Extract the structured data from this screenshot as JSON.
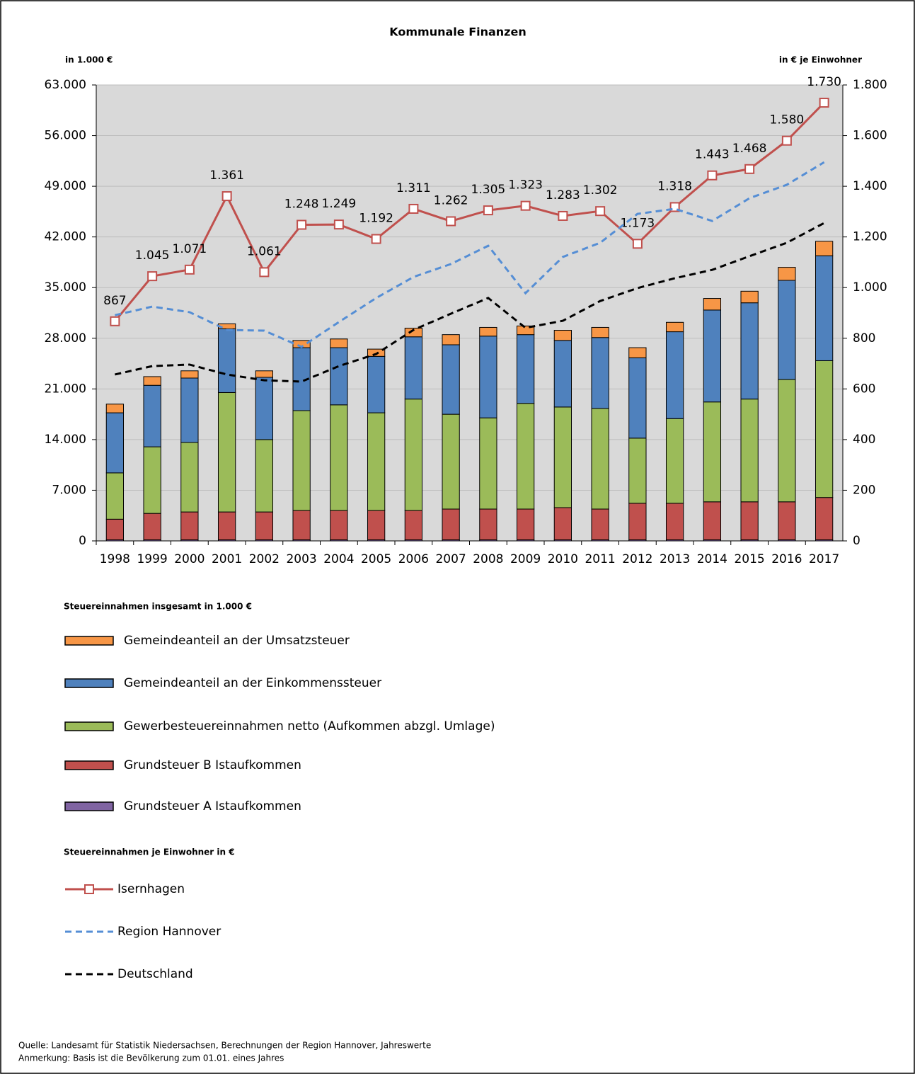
{
  "chart_data": {
    "type": "bar",
    "stacked": true,
    "title": "Kommunale Finanzen",
    "y_label": "in 1.000 €",
    "y2_label": "in € je Einwohner",
    "categories": [
      "1998",
      "1999",
      "2000",
      "2001",
      "2002",
      "2003",
      "2004",
      "2005",
      "2006",
      "2007",
      "2008",
      "2009",
      "2010",
      "2011",
      "2012",
      "2013",
      "2014",
      "2015",
      "2016",
      "2017"
    ],
    "legend_titles": [
      "Steuereinnahmen insgesamt in 1.000 €",
      "Steuereinnahmen je Einwohner in €"
    ],
    "series": [
      {
        "name": "Gemeindeanteil an der Umsatzsteuer",
        "kind": "bar",
        "color": "#f79646",
        "values": [
          1200,
          1200,
          1000,
          700,
          900,
          1000,
          1200,
          1000,
          1200,
          1400,
          1200,
          1200,
          1400,
          1400,
          1400,
          1300,
          1600,
          1600,
          1800,
          2000
        ]
      },
      {
        "name": "Gemeindeanteil an der Einkommenssteuer",
        "kind": "bar",
        "color": "#4f81bd",
        "values": [
          8300,
          8500,
          8900,
          8800,
          8600,
          8700,
          7900,
          7800,
          8600,
          9600,
          11300,
          9500,
          9200,
          9800,
          11100,
          12000,
          12700,
          13300,
          13700,
          14500
        ]
      },
      {
        "name": "Gewerbesteuereinnahmen netto (Aufkommen abzgl. Umlage)",
        "kind": "bar",
        "color": "#9bbb59",
        "values": [
          6400,
          9200,
          9600,
          16500,
          10000,
          13800,
          14600,
          13500,
          15400,
          13100,
          12600,
          14600,
          13900,
          13900,
          9000,
          11700,
          13800,
          14200,
          16900,
          18900
        ]
      },
      {
        "name": "Grundsteuer B Istaufkommen",
        "kind": "bar",
        "color": "#c0504d",
        "values": [
          2850,
          3650,
          3850,
          3850,
          3850,
          4050,
          4050,
          4050,
          4050,
          4250,
          4250,
          4250,
          4450,
          4250,
          5050,
          5050,
          5250,
          5250,
          5250,
          5850
        ]
      },
      {
        "name": "Grundsteuer A Istaufkommen",
        "kind": "bar",
        "color": "#8064a2",
        "values": [
          150,
          150,
          150,
          150,
          150,
          150,
          150,
          150,
          150,
          150,
          150,
          150,
          150,
          150,
          150,
          150,
          150,
          150,
          150,
          150
        ]
      },
      {
        "name": "Isernhagen",
        "kind": "line",
        "axis": "y2",
        "color": "#c0504d",
        "marker": "square",
        "values": [
          867,
          1045,
          1071,
          1361,
          1061,
          1248,
          1249,
          1192,
          1311,
          1262,
          1305,
          1323,
          1283,
          1302,
          1173,
          1318,
          1443,
          1468,
          1580,
          1730
        ],
        "value_labels": [
          "867",
          "1.045",
          "1.071",
          "1.361",
          "1.061",
          "1.248",
          "1.249",
          "1.192",
          "1.311",
          "1.262",
          "1.305",
          "1.323",
          "1.283",
          "1.302",
          "1.173",
          "1.318",
          "1.443",
          "1.468",
          "1.580",
          "1.730"
        ]
      },
      {
        "name": "Region Hannover",
        "kind": "line",
        "axis": "y2",
        "color": "#558ed5",
        "dashed": true,
        "values": [
          891,
          925,
          903,
          833,
          830,
          766,
          864,
          959,
          1042,
          1093,
          1165,
          978,
          1121,
          1177,
          1291,
          1311,
          1263,
          1353,
          1406,
          1495
        ]
      },
      {
        "name": "Deutschland",
        "kind": "line",
        "axis": "y2",
        "color": "#000000",
        "dashed": true,
        "values": [
          657,
          690,
          696,
          657,
          634,
          629,
          690,
          738,
          833,
          897,
          959,
          841,
          869,
          947,
          998,
          1037,
          1070,
          1124,
          1177,
          1255
        ]
      }
    ],
    "ylim": [
      0,
      63000
    ],
    "yticks": [
      0,
      {
        "value": 7000,
        "label": "7.000"
      },
      {
        "value": 14000,
        "label": "14.000"
      },
      {
        "value": 21000,
        "label": "21.000"
      },
      {
        "value": 28000,
        "label": "28.000"
      },
      {
        "value": 35000,
        "label": "35.000"
      },
      {
        "value": 42000,
        "label": "42.000"
      },
      {
        "value": 49000,
        "label": "49.000"
      },
      {
        "value": 56000,
        "label": "56.000"
      },
      {
        "value": 63000,
        "label": "63.000"
      }
    ],
    "y2lim": [
      0,
      1800
    ],
    "y2ticks": [
      0,
      200,
      400,
      600,
      800,
      {
        "value": 1000,
        "label": "1.000"
      },
      {
        "value": 1200,
        "label": "1.200"
      },
      {
        "value": 1400,
        "label": "1.400"
      },
      {
        "value": 1600,
        "label": "1.600"
      },
      {
        "value": 1800,
        "label": "1.800"
      }
    ],
    "grid": true,
    "notes": [
      "Quelle: Landesamt für Statistik Niedersachsen, Berechnungen der Region Hannover, Jahreswerte",
      "Anmerkung: Basis ist die Bevölkerung zum 01.01. eines Jahres"
    ]
  }
}
